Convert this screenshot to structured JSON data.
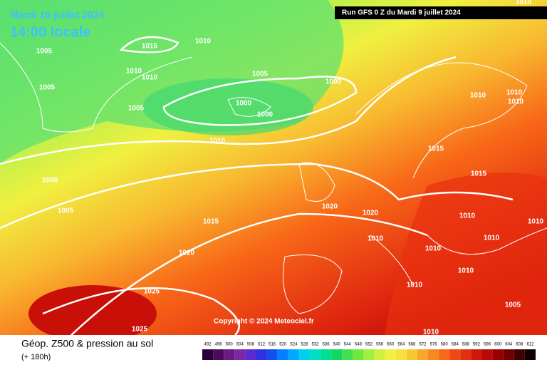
{
  "header": {
    "date": "Mardi 16 juillet 2024",
    "time": "14:00 locale",
    "run": "Run GFS 0 Z du Mardi 9 juillet 2024"
  },
  "copyright": "Copyright © 2024 Meteociel.fr",
  "footer": {
    "title": "Géop. Z500 & pression au sol",
    "subtitle": "(+ 180h)"
  },
  "scale": {
    "values": [
      492,
      496,
      500,
      504,
      508,
      512,
      516,
      520,
      524,
      528,
      532,
      536,
      540,
      544,
      548,
      552,
      556,
      560,
      564,
      568,
      572,
      576,
      580,
      584,
      588,
      592,
      596,
      600,
      604,
      608,
      612
    ],
    "colors": [
      "#2a0038",
      "#4b0a5e",
      "#6a1a80",
      "#7a28a8",
      "#5a2ad0",
      "#3030e0",
      "#1050f0",
      "#0080ff",
      "#00a8ff",
      "#00d0f0",
      "#00e0c0",
      "#00e090",
      "#10d860",
      "#40e050",
      "#70e840",
      "#a0f040",
      "#d0f040",
      "#f0f040",
      "#f8e040",
      "#f8c830",
      "#f8a828",
      "#f88820",
      "#f86818",
      "#f04810",
      "#e03010",
      "#d01808",
      "#b80808",
      "#980000",
      "#700000",
      "#400000",
      "#100000"
    ]
  },
  "isobars": [
    "1010",
    "1015",
    "1010",
    "1005",
    "1010",
    "1010",
    "1005",
    "1000",
    "1005",
    "1000",
    "1000",
    "1005",
    "1010",
    "1010",
    "1010",
    "1010",
    "1015",
    "1015",
    "1000",
    "1005",
    "1020",
    "1020",
    "1010",
    "1015",
    "1010",
    "1010",
    "1010",
    "1010",
    "1020",
    "1010",
    "1010",
    "1025",
    "1005",
    "1025",
    "1010"
  ]
}
